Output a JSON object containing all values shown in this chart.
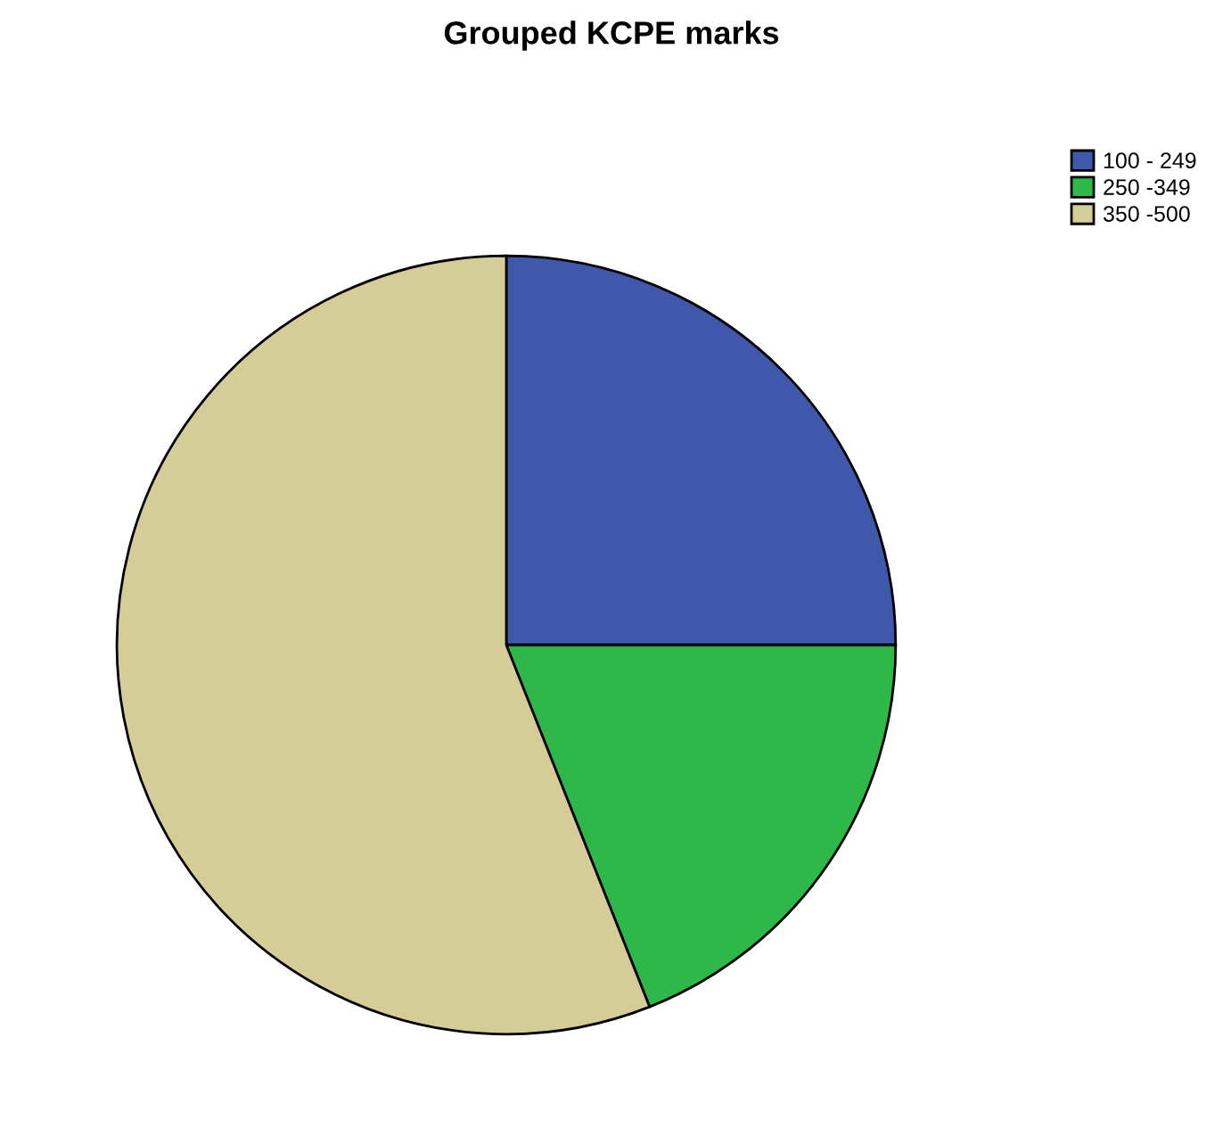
{
  "chart_data": {
    "type": "pie",
    "title": "Grouped KCPE marks",
    "categories": [
      "100 - 249",
      "250 -349",
      "350 -500"
    ],
    "values": [
      25,
      19,
      56
    ],
    "colors": [
      "#3f58ab",
      "#2fb84a",
      "#d4cd98"
    ],
    "legend": "top right"
  }
}
